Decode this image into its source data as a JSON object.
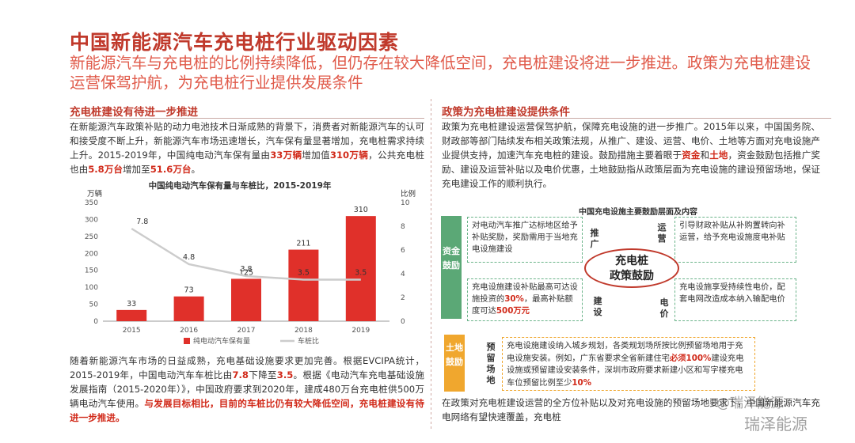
{
  "title": "中国新能源汽车充电桩行业驱动因素",
  "subtitle": "新能源汽车与充电桩的比例持续降低，但仍存在较大降低空间，充电桩建设将进一步推进。政策为充电桩建设运营保驾护航，为充电桩行业提供发展条件",
  "left": {
    "heading": "充电桩建设有待进一步推进",
    "para1": {
      "t1": "在新能源汽车政策补贴的动力电池技术日渐成熟的背景下，消费者对新能源汽车的认可和接受度不断上升，新能源汽车市场迅速增长，汽车保有量显著增加，充电桩需求持续上升。2015-2019年，中国纯电动汽车保有量由",
      "h1": "33万辆",
      "t2": "增加值",
      "h2": "310万辆",
      "t3": "，公共充电桩也由",
      "h3": "5.8万台",
      "t4": "增加至",
      "h4": "51.6万台",
      "t5": "。"
    },
    "para2": {
      "t1": "随着新能源汽车市场的日益成熟，充电基础设施要求更加完善。根据EVCIPA统计，2015-2019年，中国电动汽车车桩比由",
      "h1": "7.8",
      "t2": "下降至",
      "h2": "3.5",
      "t3": "。根据《电动汽车充电基础设施发展指南（2015-2020年）》，中国政府要求到2020年，建成480万台充电桩供500万辆电动汽车使用。",
      "h3": "与发展目标相比，目前的车桩比仍有较大降低空间，充电桩建设有待进一步推进。"
    }
  },
  "chart_data": {
    "type": "bar",
    "title": "中国纯电动汽车保有量与车桩比，2015-2019年",
    "categories": [
      "2015",
      "2016",
      "2017",
      "2018",
      "2019"
    ],
    "series": [
      {
        "name": "纯电动汽车保有量",
        "values": [
          33,
          73,
          125,
          211,
          310
        ],
        "axis": "left",
        "color": "#e0302a"
      },
      {
        "name": "车桩比",
        "values": [
          7.8,
          4.8,
          3.8,
          3.5,
          3.5
        ],
        "axis": "right",
        "color": "#cccccc"
      }
    ],
    "ylabel": "万辆",
    "y2label": "比例",
    "ylim": [
      0,
      350
    ],
    "y2lim": [
      0,
      10
    ],
    "yticks": [
      "0",
      "50",
      "100",
      "150",
      "200",
      "250",
      "300",
      "350"
    ],
    "y2ticks": [
      "0",
      "2",
      "4",
      "6",
      "8",
      "10"
    ],
    "legend": "bottom"
  },
  "right": {
    "heading": "政策为充电桩建设提供条件",
    "para1": {
      "t1": "政策为充电桩建设运营保驾护航，保障充电设施的进一步推广。2015年以来，中国国务院、财政部等部门陆续发布相关政策法规，从推广、建设、运营、电价、土地等方面对充电设施产业提供支持，加速汽车充电桩的建设。鼓励措施主要着眼于",
      "h1": "资金",
      "t2": "和",
      "h2": "土地",
      "t3": "，资金鼓励包括推广奖励、建设及运营补贴以及电价优惠，土地鼓励指从政策层面为充电设施的建设预留场地，保证充电建设工作的顺利执行。"
    },
    "diagram": {
      "title": "中国充电设施主要鼓励层面及内容",
      "fund_label": "资金鼓励",
      "land_label": "土地鼓励",
      "center": [
        "充电桩",
        "政策鼓励"
      ],
      "promote": {
        "label": "推广",
        "text": "对电动汽车推广达标地区给予补贴奖励，奖励需用于当地充电设施建设"
      },
      "operate": {
        "label": "运营",
        "text": "引导财政补贴从补购置转向补运营，给予充电设施度电补贴"
      },
      "build": {
        "label": "建设",
        "t1": "充电设施建设补贴最高可达设施投资的",
        "h1": "30%",
        "t2": "，最高补贴额度可达",
        "h2": "500万元"
      },
      "price": {
        "label": "电价",
        "text": "充电设施享受持续性电价，配套电网改造成本纳入输配电价"
      },
      "reserve": {
        "label": "预留场地",
        "t1": "充电设施建设纳入城乡规划，各类规划场所按比例预留场地用于充电设施安装。例如，广东省要求全省新建住宅",
        "h1": "必须100%",
        "t2": "建设充电设施或预留建设安装条件，深圳市政府要求新建小区和写字楼充电车位预留比例至少",
        "h2": "10%"
      }
    },
    "para2": "在政策对充电桩建设运营的全方位补贴以及对充电设施的预留场地要求下，中国新能源汽车充电网络有望快速覆盖，充电桩"
  },
  "watermarks": [
    "@瑞泽能源",
    "瑞泽能源"
  ]
}
